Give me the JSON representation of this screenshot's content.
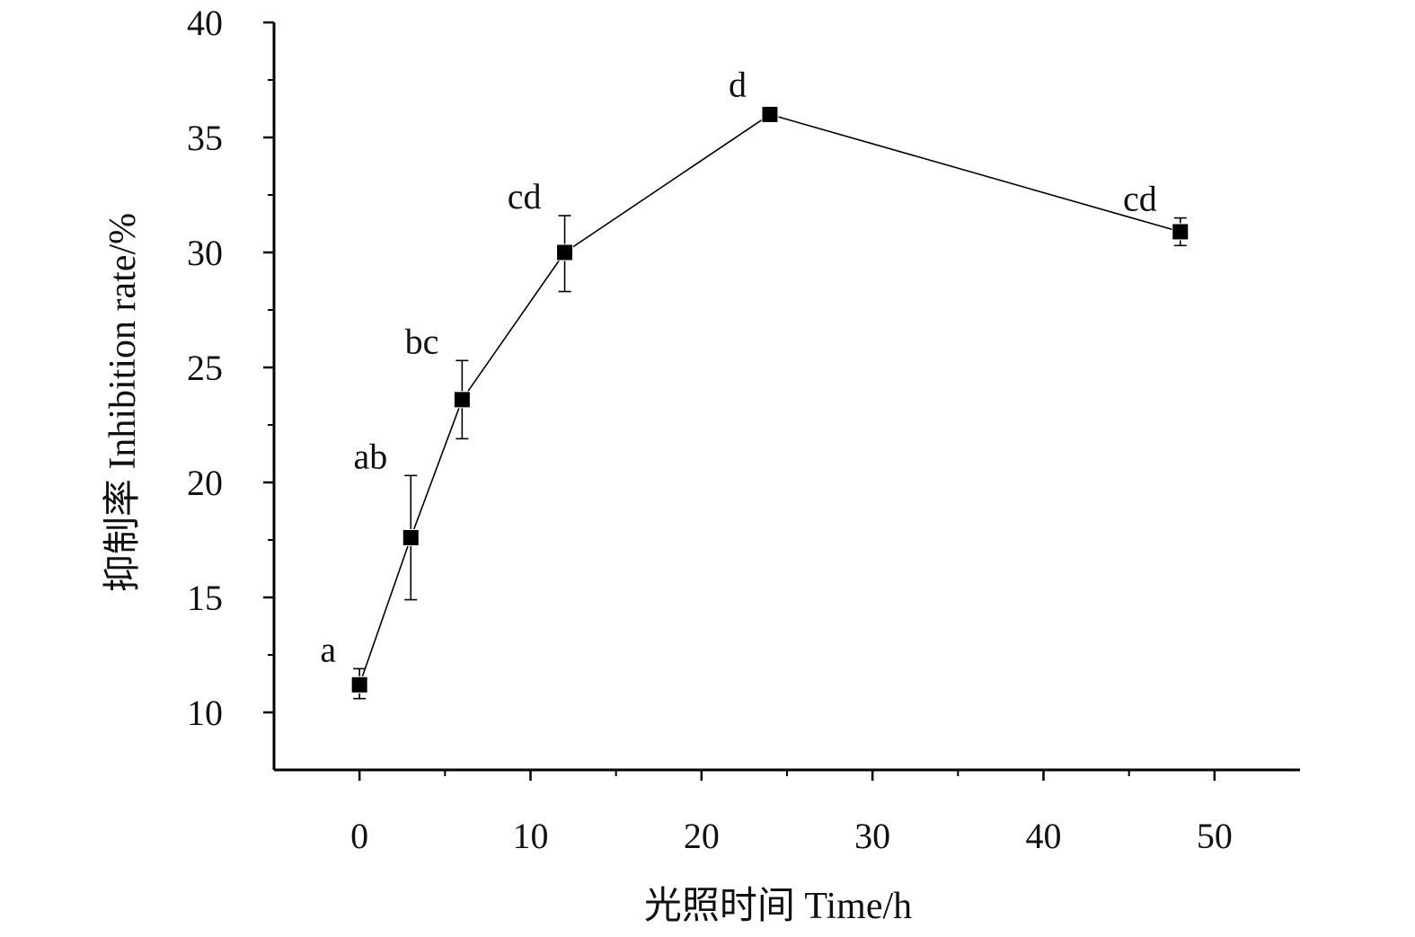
{
  "chart_data": {
    "type": "line",
    "title": "",
    "xlabel": "光照时间 Time/h",
    "ylabel": "抑制率 Inhibition rate/%",
    "xlim": [
      -5,
      55
    ],
    "ylim": [
      7.5,
      40
    ],
    "x_ticks": [
      0,
      10,
      20,
      30,
      40,
      50
    ],
    "y_ticks": [
      10,
      15,
      20,
      25,
      30,
      35,
      40
    ],
    "grid": false,
    "legend": "none",
    "series": [
      {
        "marker": "square",
        "color": "#000000",
        "points": [
          {
            "x": 0,
            "y": 11.2,
            "err_low": 10.6,
            "err_high": 11.9,
            "label": "a"
          },
          {
            "x": 3,
            "y": 17.6,
            "err_low": 14.9,
            "err_high": 20.3,
            "label": "ab"
          },
          {
            "x": 6,
            "y": 23.6,
            "err_low": 21.9,
            "err_high": 25.3,
            "label": "bc"
          },
          {
            "x": 12,
            "y": 30.0,
            "err_low": 28.3,
            "err_high": 31.6,
            "label": "cd"
          },
          {
            "x": 24,
            "y": 36.0,
            "err_low": 35.8,
            "err_high": 36.2,
            "label": "d"
          },
          {
            "x": 48,
            "y": 30.9,
            "err_low": 30.3,
            "err_high": 31.5,
            "label": "cd"
          }
        ]
      }
    ]
  }
}
